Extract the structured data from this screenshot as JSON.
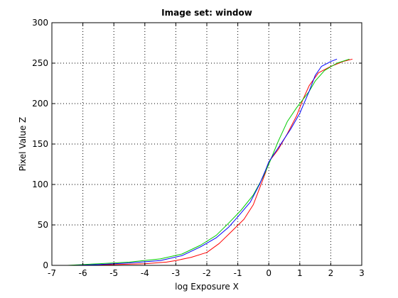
{
  "chart_data": {
    "type": "line",
    "title": "Image set: window",
    "xlabel": "log Exposure X",
    "ylabel": "Pixel Value Z",
    "xlim": [
      -7,
      3
    ],
    "ylim": [
      0,
      300
    ],
    "xticks": [
      -7,
      -6,
      -5,
      -4,
      -3,
      -2,
      -1,
      0,
      1,
      2,
      3
    ],
    "yticks": [
      0,
      50,
      100,
      150,
      200,
      250,
      300
    ],
    "grid": true,
    "grid_style": "dotted",
    "series": [
      {
        "color": "#ff0000",
        "points": [
          [
            -6.1,
            0
          ],
          [
            -5,
            1
          ],
          [
            -4,
            2
          ],
          [
            -3.3,
            4
          ],
          [
            -3,
            6
          ],
          [
            -2.5,
            10
          ],
          [
            -2,
            16
          ],
          [
            -1.6,
            27
          ],
          [
            -1.2,
            42
          ],
          [
            -0.8,
            57
          ],
          [
            -0.5,
            75
          ],
          [
            -0.3,
            95
          ],
          [
            -0.1,
            115
          ],
          [
            0,
            128
          ],
          [
            0.3,
            143
          ],
          [
            0.6,
            163
          ],
          [
            0.9,
            185
          ],
          [
            1.1,
            205
          ],
          [
            1.3,
            222
          ],
          [
            1.6,
            238
          ],
          [
            2,
            246
          ],
          [
            2.4,
            252
          ],
          [
            2.7,
            255
          ]
        ]
      },
      {
        "color": "#00cc00",
        "points": [
          [
            -6.5,
            0
          ],
          [
            -5.5,
            2
          ],
          [
            -4.5,
            4
          ],
          [
            -3.5,
            8
          ],
          [
            -2.8,
            14
          ],
          [
            -2.2,
            25
          ],
          [
            -1.7,
            37
          ],
          [
            -1.3,
            52
          ],
          [
            -0.9,
            68
          ],
          [
            -0.5,
            87
          ],
          [
            -0.2,
            108
          ],
          [
            0,
            125
          ],
          [
            0.3,
            153
          ],
          [
            0.6,
            178
          ],
          [
            0.9,
            195
          ],
          [
            1.1,
            205
          ],
          [
            1.3,
            215
          ],
          [
            1.5,
            228
          ],
          [
            1.8,
            241
          ],
          [
            2.2,
            250
          ],
          [
            2.6,
            255
          ]
        ]
      },
      {
        "color": "#0000ff",
        "points": [
          [
            -6.3,
            0
          ],
          [
            -5.5,
            1
          ],
          [
            -4.5,
            3
          ],
          [
            -3.5,
            6
          ],
          [
            -2.8,
            12
          ],
          [
            -2.2,
            23
          ],
          [
            -1.7,
            34
          ],
          [
            -1.3,
            47
          ],
          [
            -1,
            60
          ],
          [
            -0.6,
            78
          ],
          [
            -0.3,
            100
          ],
          [
            -0.1,
            118
          ],
          [
            0,
            128
          ],
          [
            0.3,
            145
          ],
          [
            0.7,
            168
          ],
          [
            1,
            188
          ],
          [
            1.3,
            215
          ],
          [
            1.5,
            235
          ],
          [
            1.7,
            246
          ],
          [
            2,
            252
          ],
          [
            2.2,
            255
          ]
        ]
      }
    ]
  }
}
